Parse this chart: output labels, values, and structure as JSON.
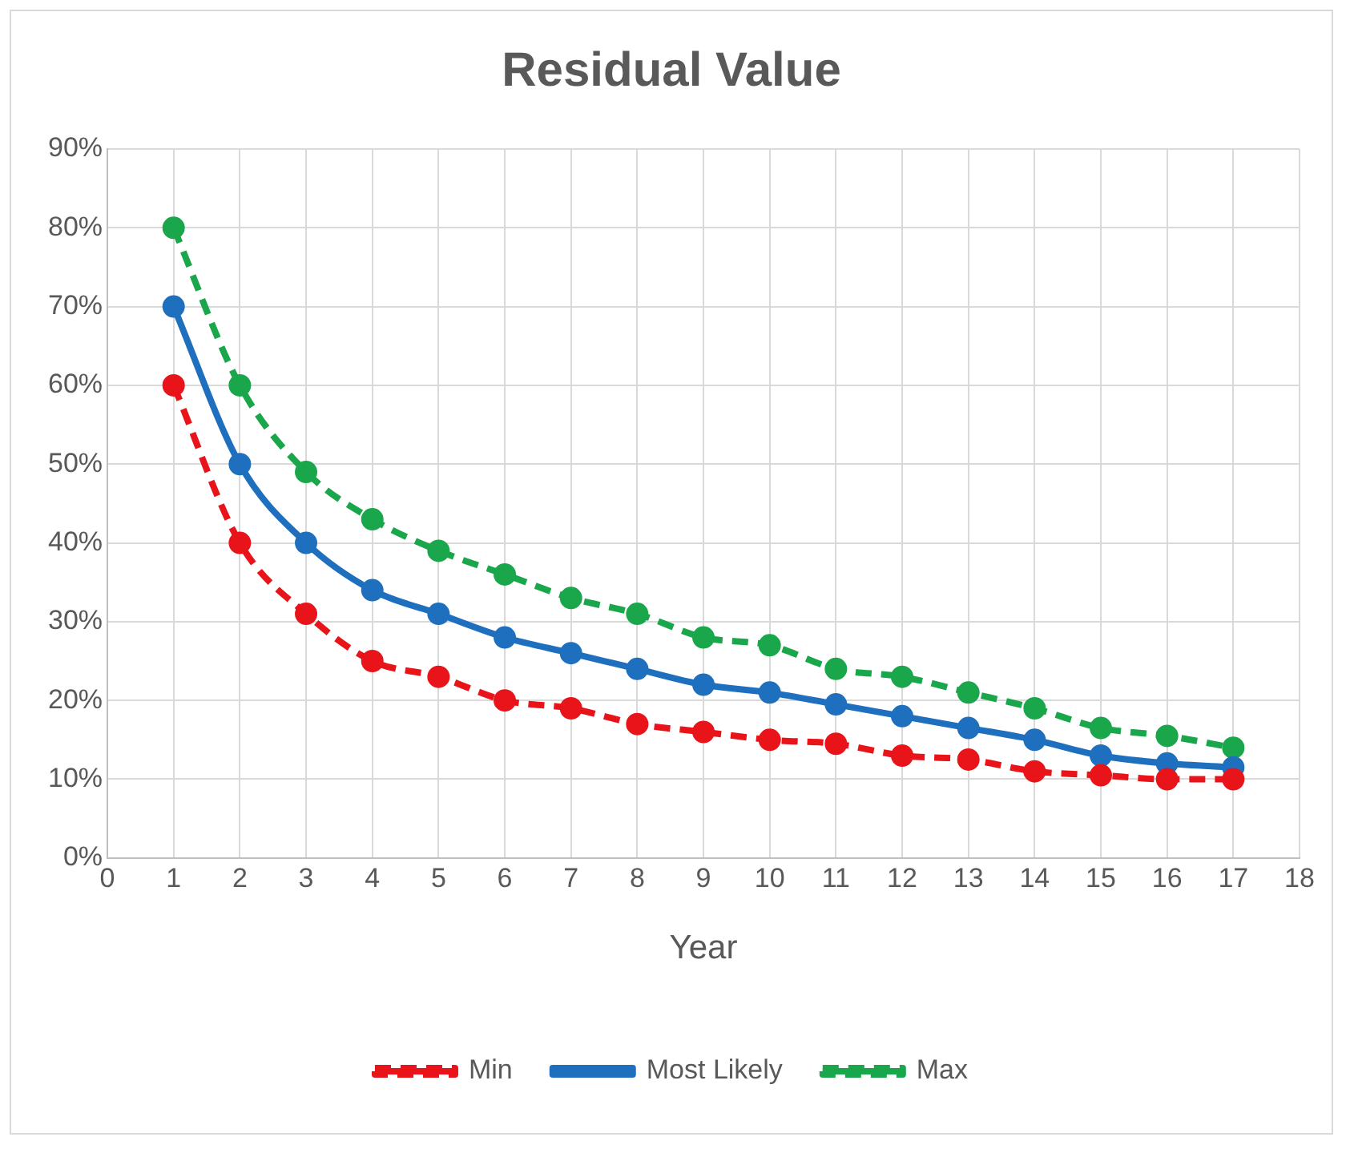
{
  "chart_data": {
    "type": "line",
    "title": "Residual Value",
    "xlabel": "Year",
    "x": [
      1,
      2,
      3,
      4,
      5,
      6,
      7,
      8,
      9,
      10,
      11,
      12,
      13,
      14,
      15,
      16,
      17
    ],
    "series": [
      {
        "name": "Min",
        "color": "#e8141a",
        "line_style": "dashed",
        "values": [
          60,
          40,
          31,
          25,
          23,
          20,
          19,
          17,
          16,
          15,
          14.5,
          13,
          12.5,
          11,
          10.5,
          10,
          10
        ]
      },
      {
        "name": "Most Likely",
        "color": "#1f6fbf",
        "line_style": "solid",
        "values": [
          70,
          50,
          40,
          34,
          31,
          28,
          26,
          24,
          22,
          21,
          19.5,
          18,
          16.5,
          15,
          13,
          12,
          11.5
        ]
      },
      {
        "name": "Max",
        "color": "#1aa64a",
        "line_style": "dashed",
        "values": [
          80,
          60,
          49,
          43,
          39,
          36,
          33,
          31,
          28,
          27,
          24,
          23,
          21,
          19,
          16.5,
          15.5,
          14
        ]
      }
    ],
    "xlim": [
      0,
      18
    ],
    "xticks": [
      0,
      1,
      2,
      3,
      4,
      5,
      6,
      7,
      8,
      9,
      10,
      11,
      12,
      13,
      14,
      15,
      16,
      17,
      18
    ],
    "ylim": [
      0,
      90
    ],
    "yticks": [
      {
        "value": 0,
        "label": "0%"
      },
      {
        "value": 10,
        "label": "10%"
      },
      {
        "value": 20,
        "label": "20%"
      },
      {
        "value": 30,
        "label": "30%"
      },
      {
        "value": 40,
        "label": "40%"
      },
      {
        "value": 50,
        "label": "50%"
      },
      {
        "value": 60,
        "label": "60%"
      },
      {
        "value": 70,
        "label": "70%"
      },
      {
        "value": 80,
        "label": "80%"
      },
      {
        "value": 90,
        "label": "90%"
      }
    ],
    "grid": true,
    "legend": "bottom",
    "marker": "circle"
  }
}
